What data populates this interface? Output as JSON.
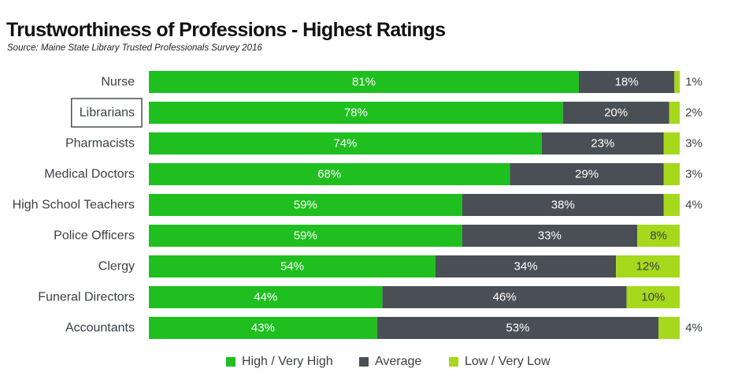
{
  "header": {
    "title": "Trustworthiness of Professions - Highest Ratings",
    "source": "Source: Maine State Library Trusted Professionals Survey 2016"
  },
  "colors": {
    "high": "#1fbf1f",
    "average": "#4a4f55",
    "low": "#a6d81c",
    "text": "#3a3f44",
    "highlight_box": "#4a4f55"
  },
  "chart_data": {
    "type": "bar",
    "orientation": "horizontal",
    "stacked": true,
    "title": "Trustworthiness of Professions - Highest Ratings",
    "subtitle": "Source: Maine State Library Trusted Professionals Survey 2016",
    "categories": [
      "Nurse",
      "Librarians",
      "Pharmacists",
      "Medical Doctors",
      "High School Teachers",
      "Police Officers",
      "Clergy",
      "Funeral Directors",
      "Accountants"
    ],
    "highlighted_category": "Librarians",
    "series": [
      {
        "name": "High / Very High",
        "values": [
          81,
          78,
          74,
          68,
          59,
          59,
          54,
          44,
          43
        ],
        "labels": [
          "81%",
          "78%",
          "74%",
          "68%",
          "59%",
          "59%",
          "54%",
          "44%",
          "43%"
        ]
      },
      {
        "name": "Average",
        "values": [
          18,
          20,
          23,
          29,
          38,
          33,
          34,
          46,
          53
        ],
        "labels": [
          "18%",
          "20%",
          "23%",
          "29%",
          "38%",
          "33%",
          "34%",
          "46%",
          "53%"
        ]
      },
      {
        "name": "Low / Very Low",
        "values": [
          1,
          2,
          3,
          3,
          4,
          8,
          12,
          10,
          4
        ],
        "labels": [
          "1%",
          "2%",
          "3%",
          "3%",
          "4%",
          "8%",
          "12%",
          "10%",
          "4%"
        ]
      }
    ],
    "xlim": [
      0,
      100
    ],
    "grid": false,
    "legend": "bottom"
  }
}
